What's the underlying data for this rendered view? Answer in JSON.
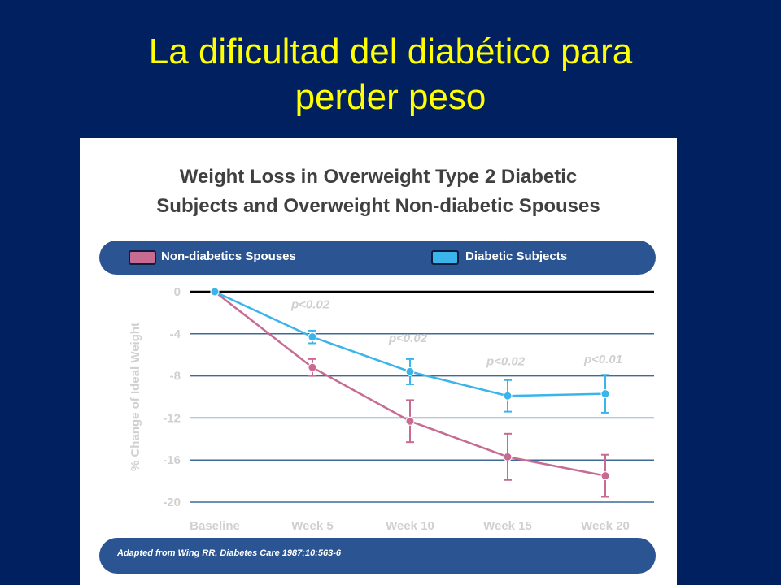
{
  "slide": {
    "title_line1": "La dificultad del diabético para",
    "title_line2": "perder peso"
  },
  "chart_data": {
    "type": "line",
    "title_line1": "Weight Loss in Overweight Type 2 Diabetic",
    "title_line2": "Subjects and Overweight Non-diabetic Spouses",
    "ylabel": "% Change of Ideal Weight",
    "xlabel": "",
    "categories": [
      "Baseline",
      "Week 5",
      "Week 10",
      "Week 15",
      "Week 20"
    ],
    "ylim": [
      -20,
      0
    ],
    "yticks": [
      0,
      -4,
      -8,
      -12,
      -16,
      -20
    ],
    "grid": true,
    "legend_position": "top",
    "series": [
      {
        "name": "Non-diabetics Spouses",
        "color": "#c86b92",
        "values": [
          0,
          -7.2,
          -12.3,
          -15.7,
          -17.5
        ],
        "error": [
          0,
          0.8,
          2.0,
          2.2,
          2.0
        ]
      },
      {
        "name": "Diabetic Subjects",
        "color": "#3ab4ea",
        "values": [
          0,
          -4.3,
          -7.6,
          -9.9,
          -9.7
        ],
        "error": [
          0,
          0.6,
          1.2,
          1.5,
          1.8
        ]
      }
    ],
    "annotations": [
      {
        "text": "p<0.02",
        "x_index": 1,
        "y": -1.6
      },
      {
        "text": "p<0.02",
        "x_index": 2,
        "y": -4.8
      },
      {
        "text": "p<0.02",
        "x_index": 3,
        "y": -7.0
      },
      {
        "text": "p<0.01",
        "x_index": 4,
        "y": -6.8
      }
    ],
    "source": "Adapted from Wing RR, Diabetes Care 1987;10:563-6"
  }
}
